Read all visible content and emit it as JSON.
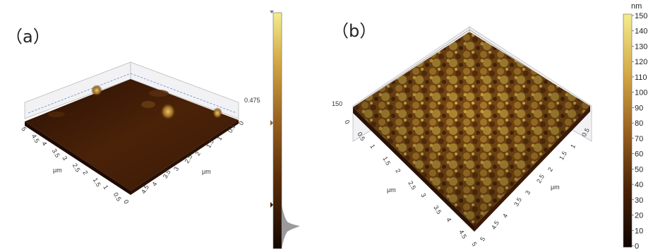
{
  "panel_a": {
    "label": "（a）",
    "height_label": "0.475",
    "axis_unit_left": "μm",
    "axis_unit_right": "μm",
    "left_axis_ticks": [
      "5",
      "4.5",
      "4",
      "3.5",
      "3",
      "2.5",
      "2",
      "1.5",
      "1",
      "0.5",
      "0"
    ],
    "right_axis_ticks": [
      "0",
      "0.5",
      "1",
      "1.5",
      "2",
      "2.5",
      "3",
      "3.5",
      "4",
      "4.5"
    ],
    "back_ticks": [
      "2",
      "1.5",
      "1",
      "0.5",
      "0"
    ]
  },
  "panel_b": {
    "label": "（b）",
    "height_label_left": "150",
    "height_label_right": "150",
    "axis_unit_left": "μm",
    "axis_unit_right": "μm",
    "left_axis_ticks": [
      "0",
      "0.5",
      "1",
      "1.5",
      "2",
      "2.5",
      "3",
      "3.5",
      "4",
      "4.5",
      "5"
    ],
    "right_axis_ticks": [
      "5",
      "4.5",
      "4",
      "3.5",
      "3",
      "2.5",
      "2",
      "1.5",
      "1",
      "0.5",
      "0"
    ]
  },
  "colorbar": {
    "unit": "nm",
    "ticks": [
      "150",
      "140",
      "130",
      "120",
      "110",
      "100",
      "90",
      "80",
      "70",
      "60",
      "50",
      "40",
      "30",
      "20",
      "10",
      "0"
    ]
  },
  "colors": {
    "surface_dark": "#3a1a06",
    "surface_mid": "#7a4a14",
    "surface_light": "#c8a040",
    "colorbar_top": "#f4ec90",
    "colorbar_bottom": "#1a0a02"
  }
}
